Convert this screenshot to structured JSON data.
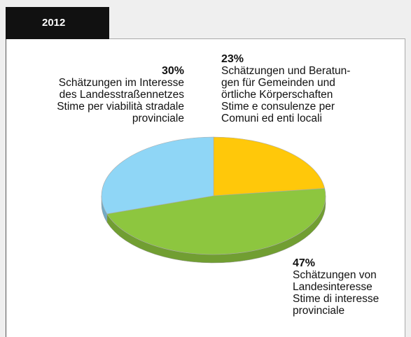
{
  "chart_data": {
    "type": "pie",
    "title": "2012",
    "categories": [
      "Schätzungen und Beratun-\ngen für Gemeinden und\nörtliche Körperschaften\nStime e consulenze per\nComuni ed enti locali",
      "Schätzungen von\nLandesinteresse\nStime di interesse\nprovinciale",
      "Schätzungen im Interesse\ndes Landesstraßennetzes\nStime per viabilità stradale\nprovinciale"
    ],
    "values": [
      23,
      47,
      30
    ],
    "value_labels": [
      "23%",
      "47%",
      "30%"
    ],
    "colors": [
      "#ffc80a",
      "#8dc63f",
      "#8fd6f6"
    ]
  }
}
